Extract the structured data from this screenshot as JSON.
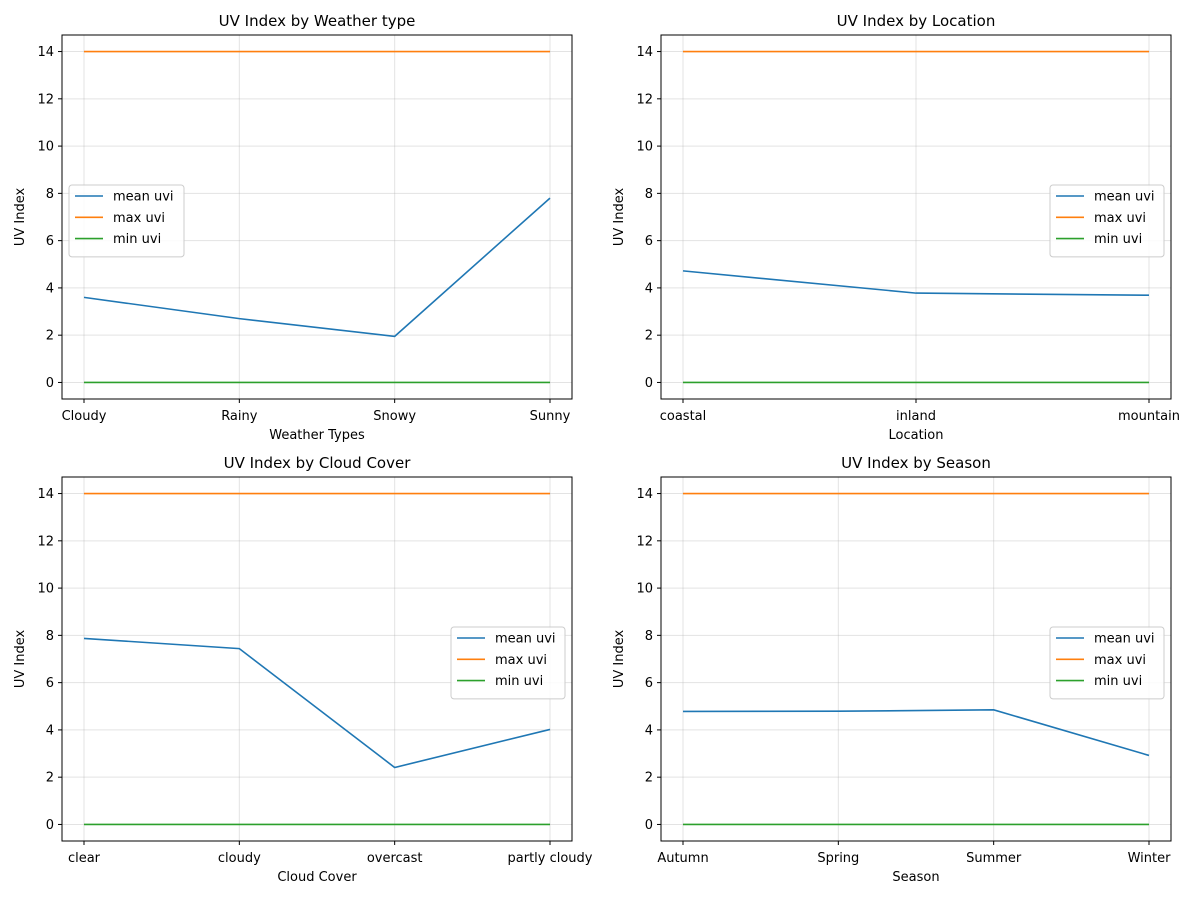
{
  "chart_data": [
    {
      "type": "line",
      "title": "UV Index by Weather type",
      "xlabel": "Weather Types",
      "ylabel": "UV Index",
      "categories": [
        "Cloudy",
        "Rainy",
        "Snowy",
        "Sunny"
      ],
      "ylim": [
        -0.7,
        14.7
      ],
      "yticks": [
        0,
        2,
        4,
        6,
        8,
        10,
        12,
        14
      ],
      "grid": true,
      "legend_position": "center-left",
      "series": [
        {
          "name": "mean uvi",
          "color": "#1f77b4",
          "values": [
            3.6,
            2.7,
            1.95,
            7.8
          ]
        },
        {
          "name": "max uvi",
          "color": "#ff7f0e",
          "values": [
            14,
            14,
            14,
            14
          ]
        },
        {
          "name": "min uvi",
          "color": "#2ca02c",
          "values": [
            0,
            0,
            0,
            0
          ]
        }
      ]
    },
    {
      "type": "line",
      "title": "UV Index by Location",
      "xlabel": "Location",
      "ylabel": "UV Index",
      "categories": [
        "coastal",
        "inland",
        "mountain"
      ],
      "ylim": [
        -0.7,
        14.7
      ],
      "yticks": [
        0,
        2,
        4,
        6,
        8,
        10,
        12,
        14
      ],
      "grid": true,
      "legend_position": "center-right",
      "series": [
        {
          "name": "mean uvi",
          "color": "#1f77b4",
          "values": [
            4.72,
            3.78,
            3.69
          ]
        },
        {
          "name": "max uvi",
          "color": "#ff7f0e",
          "values": [
            14,
            14,
            14
          ]
        },
        {
          "name": "min uvi",
          "color": "#2ca02c",
          "values": [
            0,
            0,
            0
          ]
        }
      ]
    },
    {
      "type": "line",
      "title": "UV Index by Cloud Cover",
      "xlabel": "Cloud Cover",
      "ylabel": "UV Index",
      "categories": [
        "clear",
        "cloudy",
        "overcast",
        "partly cloudy"
      ],
      "ylim": [
        -0.7,
        14.7
      ],
      "yticks": [
        0,
        2,
        4,
        6,
        8,
        10,
        12,
        14
      ],
      "grid": true,
      "legend_position": "center-right",
      "series": [
        {
          "name": "mean uvi",
          "color": "#1f77b4",
          "values": [
            7.87,
            7.44,
            2.41,
            4.02
          ]
        },
        {
          "name": "max uvi",
          "color": "#ff7f0e",
          "values": [
            14,
            14,
            14,
            14
          ]
        },
        {
          "name": "min uvi",
          "color": "#2ca02c",
          "values": [
            0,
            0,
            0,
            0
          ]
        }
      ]
    },
    {
      "type": "line",
      "title": "UV Index by Season",
      "xlabel": "Season",
      "ylabel": "UV Index",
      "categories": [
        "Autumn",
        "Spring",
        "Summer",
        "Winter"
      ],
      "ylim": [
        -0.7,
        14.7
      ],
      "yticks": [
        0,
        2,
        4,
        6,
        8,
        10,
        12,
        14
      ],
      "grid": true,
      "legend_position": "center-right",
      "series": [
        {
          "name": "mean uvi",
          "color": "#1f77b4",
          "values": [
            4.78,
            4.79,
            4.85,
            2.92
          ]
        },
        {
          "name": "max uvi",
          "color": "#ff7f0e",
          "values": [
            14,
            14,
            14,
            14
          ]
        },
        {
          "name": "min uvi",
          "color": "#2ca02c",
          "values": [
            0,
            0,
            0,
            0
          ]
        }
      ]
    }
  ]
}
